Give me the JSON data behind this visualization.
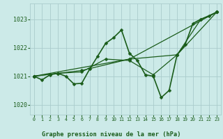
{
  "title": "Graphe pression niveau de la mer (hPa)",
  "background_color": "#cceae8",
  "grid_color": "#aacccc",
  "line_color": "#1a5c1a",
  "xlim": [
    -0.5,
    23.5
  ],
  "ylim": [
    1019.65,
    1023.55
  ],
  "yticks": [
    1020,
    1021,
    1022,
    1023
  ],
  "xticks": [
    0,
    1,
    2,
    3,
    4,
    5,
    6,
    7,
    8,
    9,
    10,
    11,
    12,
    13,
    14,
    15,
    16,
    17,
    18,
    19,
    20,
    21,
    22,
    23
  ],
  "series": [
    {
      "x": [
        0,
        1,
        2,
        3,
        4,
        5,
        6,
        7,
        8,
        9,
        10,
        11,
        12,
        13,
        14,
        15,
        16,
        17,
        18,
        19,
        20,
        21,
        22,
        23
      ],
      "y": [
        1021.0,
        1020.87,
        1021.05,
        1021.1,
        1021.0,
        1020.73,
        1020.75,
        1021.25,
        1021.7,
        1022.15,
        1022.35,
        1022.62,
        1021.8,
        1021.55,
        1021.05,
        1021.0,
        1020.25,
        1020.5,
        1021.75,
        1022.1,
        1022.85,
        1023.0,
        1023.1,
        1023.25
      ],
      "linewidth": 1.2
    },
    {
      "x": [
        0,
        3,
        6,
        9,
        12,
        15,
        18,
        21,
        23
      ],
      "y": [
        1021.0,
        1021.1,
        1021.15,
        1021.6,
        1021.55,
        1021.05,
        1021.75,
        1023.0,
        1023.25
      ],
      "linewidth": 0.9
    },
    {
      "x": [
        0,
        6,
        12,
        18,
        23
      ],
      "y": [
        1021.0,
        1021.2,
        1021.6,
        1021.75,
        1023.25
      ],
      "linewidth": 0.9
    },
    {
      "x": [
        0,
        12,
        23
      ],
      "y": [
        1021.0,
        1021.6,
        1023.25
      ],
      "linewidth": 0.9
    }
  ]
}
